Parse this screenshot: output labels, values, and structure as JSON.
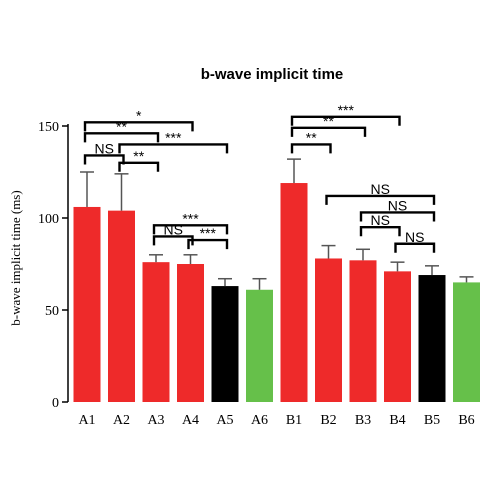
{
  "chart_data": {
    "type": "bar",
    "title": "b-wave implicit time",
    "ylabel": "b-wave implicit time (ms)",
    "xlabel": "",
    "ylim": [
      0,
      150
    ],
    "yticks": [
      0,
      50,
      100,
      150
    ],
    "categories": [
      "A1",
      "A2",
      "A3",
      "A4",
      "A5",
      "A6",
      "B1",
      "B2",
      "B3",
      "B4",
      "B5",
      "B6"
    ],
    "values": [
      106,
      104,
      76,
      75,
      63,
      61,
      119,
      78,
      77,
      71,
      69,
      65
    ],
    "errors": [
      19,
      20,
      4,
      5,
      4,
      6,
      13,
      7,
      6,
      5,
      5,
      3
    ],
    "bar_colors": [
      "#ee2a2a",
      "#ee2a2a",
      "#ee2a2a",
      "#ee2a2a",
      "#000000",
      "#66c04a",
      "#ee2a2a",
      "#ee2a2a",
      "#ee2a2a",
      "#ee2a2a",
      "#000000",
      "#66c04a"
    ],
    "significance": [
      {
        "from": "A1",
        "to": "A4",
        "label": "*",
        "y": 152
      },
      {
        "from": "A1",
        "to": "A3",
        "label": "**",
        "y": 146
      },
      {
        "from": "A2",
        "to": "A5",
        "label": "***",
        "y": 140
      },
      {
        "from": "A1",
        "to": "A2",
        "label": "NS",
        "y": 134
      },
      {
        "from": "A2",
        "to": "A3",
        "label": "**",
        "y": 130
      },
      {
        "from": "A3",
        "to": "A5",
        "label": "***",
        "y": 96
      },
      {
        "from": "A3",
        "to": "A4",
        "label": "NS",
        "y": 90
      },
      {
        "from": "A4",
        "to": "A5",
        "label": "***",
        "y": 88
      },
      {
        "from": "B1",
        "to": "B4",
        "label": "***",
        "y": 155
      },
      {
        "from": "B1",
        "to": "B3",
        "label": "**",
        "y": 149
      },
      {
        "from": "B1",
        "to": "B2",
        "label": "**",
        "y": 140
      },
      {
        "from": "B2",
        "to": "B5",
        "label": "NS",
        "y": 112
      },
      {
        "from": "B3",
        "to": "B5",
        "label": "NS",
        "y": 103
      },
      {
        "from": "B3",
        "to": "B4",
        "label": "NS",
        "y": 95
      },
      {
        "from": "B4",
        "to": "B5",
        "label": "NS",
        "y": 86
      }
    ]
  }
}
